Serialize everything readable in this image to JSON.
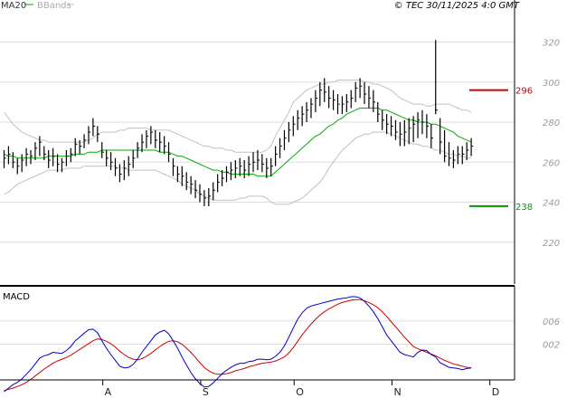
{
  "header": {
    "legend_ma": "MA20",
    "legend_bb": "BBands",
    "info": "© TEC 30/11/2025 4:0 GMT"
  },
  "colors": {
    "price": "#000000",
    "ma": "#00aa00",
    "bands": "#c0c0c0",
    "macd": "#0000cc",
    "signal": "#cc0000",
    "resistance": "#cc0000",
    "support": "#009900",
    "grid": "#dddddd"
  },
  "chart_data": [
    {
      "type": "ohlc",
      "ylim": [
        200,
        330
      ],
      "yticks": [
        220,
        240,
        260,
        280,
        300,
        320
      ],
      "x_tick_labels": [
        "A",
        "S",
        "O",
        "N",
        "D"
      ],
      "x_tick_index": [
        23,
        45,
        66,
        88,
        110
      ],
      "n_bars": 106,
      "lines": {
        "resistance": 296,
        "support": 238
      },
      "line_labels": {
        "resistance": "296",
        "support": "238"
      },
      "high": [
        266,
        268,
        265,
        262,
        264,
        267,
        266,
        270,
        273,
        268,
        266,
        267,
        264,
        262,
        266,
        267,
        272,
        271,
        274,
        278,
        282,
        278,
        270,
        266,
        265,
        262,
        259,
        261,
        263,
        266,
        270,
        274,
        276,
        278,
        276,
        275,
        273,
        270,
        262,
        258,
        258,
        255,
        253,
        251,
        249,
        246,
        247,
        250,
        254,
        256,
        258,
        260,
        261,
        262,
        261,
        263,
        265,
        266,
        264,
        262,
        262,
        268,
        272,
        276,
        280,
        283,
        286,
        288,
        290,
        292,
        296,
        300,
        302,
        298,
        296,
        294,
        293,
        294,
        296,
        300,
        302,
        300,
        298,
        296,
        290,
        286,
        284,
        283,
        281,
        280,
        281,
        282,
        283,
        285,
        286,
        284,
        279,
        321,
        282,
        276,
        270,
        266,
        268,
        268,
        270,
        272
      ],
      "low": [
        257,
        259,
        257,
        254,
        255,
        258,
        259,
        261,
        263,
        261,
        257,
        258,
        255,
        255,
        258,
        260,
        263,
        264,
        267,
        269,
        273,
        270,
        262,
        258,
        256,
        253,
        250,
        251,
        253,
        257,
        262,
        265,
        267,
        269,
        267,
        265,
        264,
        260,
        253,
        250,
        248,
        246,
        244,
        242,
        240,
        238,
        238,
        241,
        245,
        248,
        250,
        251,
        252,
        253,
        252,
        253,
        255,
        256,
        255,
        252,
        253,
        258,
        262,
        266,
        270,
        273,
        276,
        278,
        280,
        282,
        285,
        288,
        290,
        287,
        286,
        284,
        284,
        285,
        287,
        290,
        292,
        289,
        287,
        285,
        280,
        276,
        274,
        273,
        271,
        268,
        268,
        269,
        270,
        272,
        274,
        272,
        267,
        284,
        264,
        260,
        258,
        257,
        259,
        259,
        261,
        263
      ],
      "close": [
        262,
        264,
        260,
        258,
        261,
        264,
        263,
        267,
        270,
        264,
        261,
        263,
        259,
        260,
        263,
        264,
        269,
        268,
        271,
        275,
        278,
        274,
        265,
        262,
        260,
        257,
        254,
        257,
        259,
        262,
        267,
        270,
        273,
        275,
        271,
        270,
        268,
        264,
        258,
        254,
        253,
        250,
        249,
        246,
        244,
        242,
        243,
        246,
        250,
        252,
        255,
        256,
        257,
        258,
        256,
        259,
        260,
        261,
        259,
        257,
        258,
        264,
        268,
        272,
        276,
        279,
        282,
        284,
        286,
        289,
        292,
        296,
        295,
        292,
        291,
        289,
        289,
        290,
        292,
        297,
        298,
        294,
        292,
        290,
        284,
        281,
        279,
        278,
        275,
        274,
        275,
        277,
        279,
        281,
        280,
        278,
        272,
        286,
        270,
        263,
        262,
        261,
        264,
        264,
        266,
        268
      ],
      "ma20": [
        264,
        263,
        263,
        262,
        262,
        262,
        262,
        262,
        262,
        262,
        263,
        263,
        263,
        263,
        263,
        263,
        264,
        264,
        264,
        265,
        265,
        265,
        266,
        266,
        266,
        266,
        266,
        266,
        266,
        266,
        266,
        266,
        266,
        266,
        266,
        265,
        265,
        265,
        264,
        263,
        263,
        262,
        261,
        260,
        259,
        258,
        257,
        256,
        256,
        255,
        255,
        254,
        254,
        254,
        254,
        254,
        254,
        253,
        253,
        253,
        253,
        255,
        257,
        259,
        261,
        263,
        265,
        267,
        269,
        271,
        273,
        274,
        276,
        278,
        279,
        281,
        282,
        284,
        285,
        286,
        287,
        287,
        287,
        287,
        287,
        286,
        286,
        285,
        284,
        283,
        282,
        281,
        281,
        280,
        280,
        280,
        279,
        279,
        278,
        277,
        276,
        275,
        273,
        272,
        271,
        270
      ],
      "bb_up": [
        285,
        282,
        279,
        277,
        275,
        274,
        273,
        272,
        271,
        271,
        270,
        270,
        270,
        270,
        270,
        270,
        270,
        270,
        270,
        271,
        272,
        274,
        275,
        275,
        275,
        275,
        276,
        276,
        277,
        277,
        277,
        277,
        277,
        276,
        276,
        276,
        276,
        276,
        275,
        274,
        273,
        272,
        271,
        270,
        269,
        268,
        268,
        267,
        267,
        267,
        266,
        266,
        265,
        265,
        265,
        265,
        265,
        265,
        265,
        266,
        268,
        273,
        277,
        281,
        285,
        290,
        292,
        294,
        296,
        297,
        298,
        299,
        299,
        300,
        300,
        301,
        301,
        301,
        301,
        301,
        301,
        300,
        300,
        299,
        299,
        298,
        297,
        296,
        294,
        292,
        291,
        290,
        289,
        289,
        289,
        288,
        288,
        289,
        289,
        289,
        289,
        288,
        287,
        286,
        286,
        285
      ],
      "bb_dn": [
        244,
        245,
        247,
        249,
        250,
        251,
        252,
        253,
        254,
        255,
        256,
        256,
        256,
        256,
        257,
        257,
        257,
        257,
        258,
        258,
        258,
        258,
        258,
        258,
        258,
        258,
        257,
        257,
        256,
        256,
        256,
        256,
        256,
        256,
        256,
        255,
        254,
        253,
        252,
        251,
        249,
        248,
        247,
        246,
        244,
        243,
        242,
        241,
        241,
        241,
        241,
        241,
        241,
        242,
        242,
        243,
        243,
        243,
        243,
        242,
        240,
        239,
        239,
        239,
        239,
        240,
        241,
        242,
        244,
        246,
        248,
        250,
        253,
        257,
        260,
        263,
        266,
        268,
        270,
        272,
        273,
        274,
        274,
        275,
        275,
        275,
        275,
        274,
        273,
        272,
        271,
        270,
        269,
        269,
        268,
        268,
        267,
        266,
        266,
        265,
        264,
        264,
        263,
        263,
        262,
        262
      ]
    },
    {
      "type": "line",
      "title": "MACD",
      "yticks": [
        2,
        6
      ],
      "ytick_labels": [
        "002",
        "006"
      ],
      "ylim": [
        -7,
        11
      ],
      "series": [
        {
          "values": [
            -6.2,
            -5.6,
            -5.0,
            -4.6,
            -4.0,
            -3.2,
            -2.4,
            -1.4,
            -0.4,
            0.0,
            0.2,
            0.6,
            0.5,
            0.4,
            0.9,
            1.6,
            2.6,
            3.2,
            3.9,
            4.5,
            4.6,
            4.0,
            2.6,
            1.3,
            0.2,
            -0.8,
            -1.8,
            -2.1,
            -2.0,
            -1.5,
            -0.6,
            0.6,
            1.6,
            2.6,
            3.6,
            4.1,
            4.4,
            3.8,
            2.6,
            1.3,
            -0.2,
            -1.6,
            -2.9,
            -4.0,
            -4.8,
            -5.4,
            -5.3,
            -4.7,
            -3.9,
            -3.1,
            -2.5,
            -2.0,
            -1.6,
            -1.3,
            -1.3,
            -1.0,
            -0.9,
            -0.6,
            -0.6,
            -0.7,
            -0.6,
            -0.1,
            0.6,
            1.7,
            3.2,
            4.8,
            6.3,
            7.4,
            8.2,
            8.6,
            8.8,
            9.0,
            9.2,
            9.4,
            9.6,
            9.8,
            9.9,
            10.0,
            10.2,
            10.2,
            10.0,
            9.4,
            8.6,
            7.6,
            6.4,
            5.0,
            3.6,
            2.6,
            1.6,
            0.6,
            0.2,
            0.0,
            -0.2,
            0.6,
            1.0,
            0.9,
            0.2,
            -0.2,
            -1.2,
            -1.6,
            -2.0,
            -2.1,
            -2.2,
            -2.4,
            -2.2,
            -2.1
          ]
        },
        {
          "values": [
            -6.0,
            -5.8,
            -5.6,
            -5.3,
            -5.0,
            -4.6,
            -4.1,
            -3.5,
            -2.9,
            -2.3,
            -1.8,
            -1.3,
            -0.9,
            -0.6,
            -0.3,
            0.1,
            0.6,
            1.1,
            1.6,
            2.1,
            2.6,
            2.9,
            2.8,
            2.5,
            2.1,
            1.5,
            0.8,
            0.2,
            -0.3,
            -0.6,
            -0.7,
            -0.5,
            -0.1,
            0.4,
            1.0,
            1.6,
            2.1,
            2.5,
            2.6,
            2.4,
            2.0,
            1.3,
            0.6,
            -0.3,
            -1.2,
            -2.0,
            -2.6,
            -3.0,
            -3.2,
            -3.2,
            -3.1,
            -2.9,
            -2.6,
            -2.4,
            -2.2,
            -1.9,
            -1.7,
            -1.5,
            -1.3,
            -1.2,
            -1.1,
            -0.9,
            -0.6,
            -0.2,
            0.5,
            1.4,
            2.5,
            3.6,
            4.6,
            5.5,
            6.3,
            7.0,
            7.6,
            8.1,
            8.5,
            8.9,
            9.2,
            9.4,
            9.6,
            9.7,
            9.7,
            9.5,
            9.2,
            8.8,
            8.3,
            7.6,
            6.8,
            5.9,
            5.0,
            4.1,
            3.2,
            2.4,
            1.6,
            1.2,
            0.9,
            0.6,
            0.3,
            0.0,
            -0.4,
            -0.8,
            -1.1,
            -1.4,
            -1.6,
            -1.8,
            -2.0,
            -2.1
          ]
        }
      ]
    }
  ]
}
